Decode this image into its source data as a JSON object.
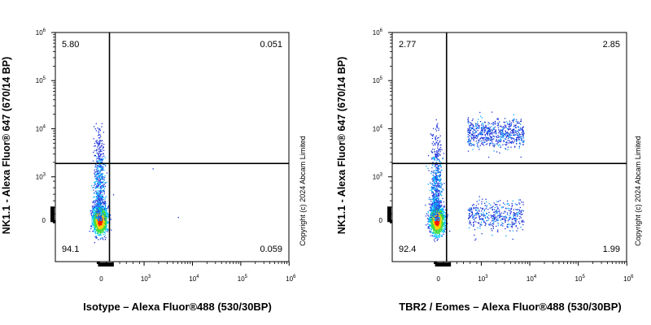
{
  "chart_data": [
    {
      "type": "scatter",
      "xlabel": "Isotype – Alexa Fluor®488 (530/30BP)",
      "ylabel": "NK1.1 - Alexa Fluor® 647 (670/14 BP)",
      "quadrants": {
        "top_left": "5.80",
        "top_right": "0.051",
        "bottom_left": "94.1",
        "bottom_right": "0.059"
      },
      "gate": {
        "x": 220,
        "y": 1900
      },
      "xticks": [
        {
          "base": "0",
          "exp": ""
        },
        {
          "base": "10",
          "exp": "3"
        },
        {
          "base": "10",
          "exp": "4"
        },
        {
          "base": "10",
          "exp": "5"
        },
        {
          "base": "10",
          "exp": "6"
        }
      ],
      "yticks": [
        {
          "base": "0",
          "exp": ""
        },
        {
          "base": "10",
          "exp": "3"
        },
        {
          "base": "10",
          "exp": "4"
        },
        {
          "base": "10",
          "exp": "5"
        },
        {
          "base": "10",
          "exp": "6"
        }
      ],
      "axis_scale": "biexponential",
      "copyright": "Copyright (c) 2024 Abcam Limited"
    },
    {
      "type": "scatter",
      "xlabel": "TBR2 / Eomes –  Alexa Fluor®488 (530/30BP)",
      "ylabel": "NK1.1 - Alexa Fluor® 647 (670/14 BP)",
      "quadrants": {
        "top_left": "2.77",
        "top_right": "2.85",
        "bottom_left": "92.4",
        "bottom_right": "1.99"
      },
      "gate": {
        "x": 220,
        "y": 1900
      },
      "xticks": [
        {
          "base": "0",
          "exp": ""
        },
        {
          "base": "10",
          "exp": "3"
        },
        {
          "base": "10",
          "exp": "4"
        },
        {
          "base": "10",
          "exp": "5"
        },
        {
          "base": "10",
          "exp": "6"
        }
      ],
      "yticks": [
        {
          "base": "0",
          "exp": ""
        },
        {
          "base": "10",
          "exp": "3"
        },
        {
          "base": "10",
          "exp": "4"
        },
        {
          "base": "10",
          "exp": "5"
        },
        {
          "base": "10",
          "exp": "6"
        }
      ],
      "axis_scale": "biexponential",
      "copyright": "Copyright (c) 2024 Abcam Limited"
    }
  ]
}
